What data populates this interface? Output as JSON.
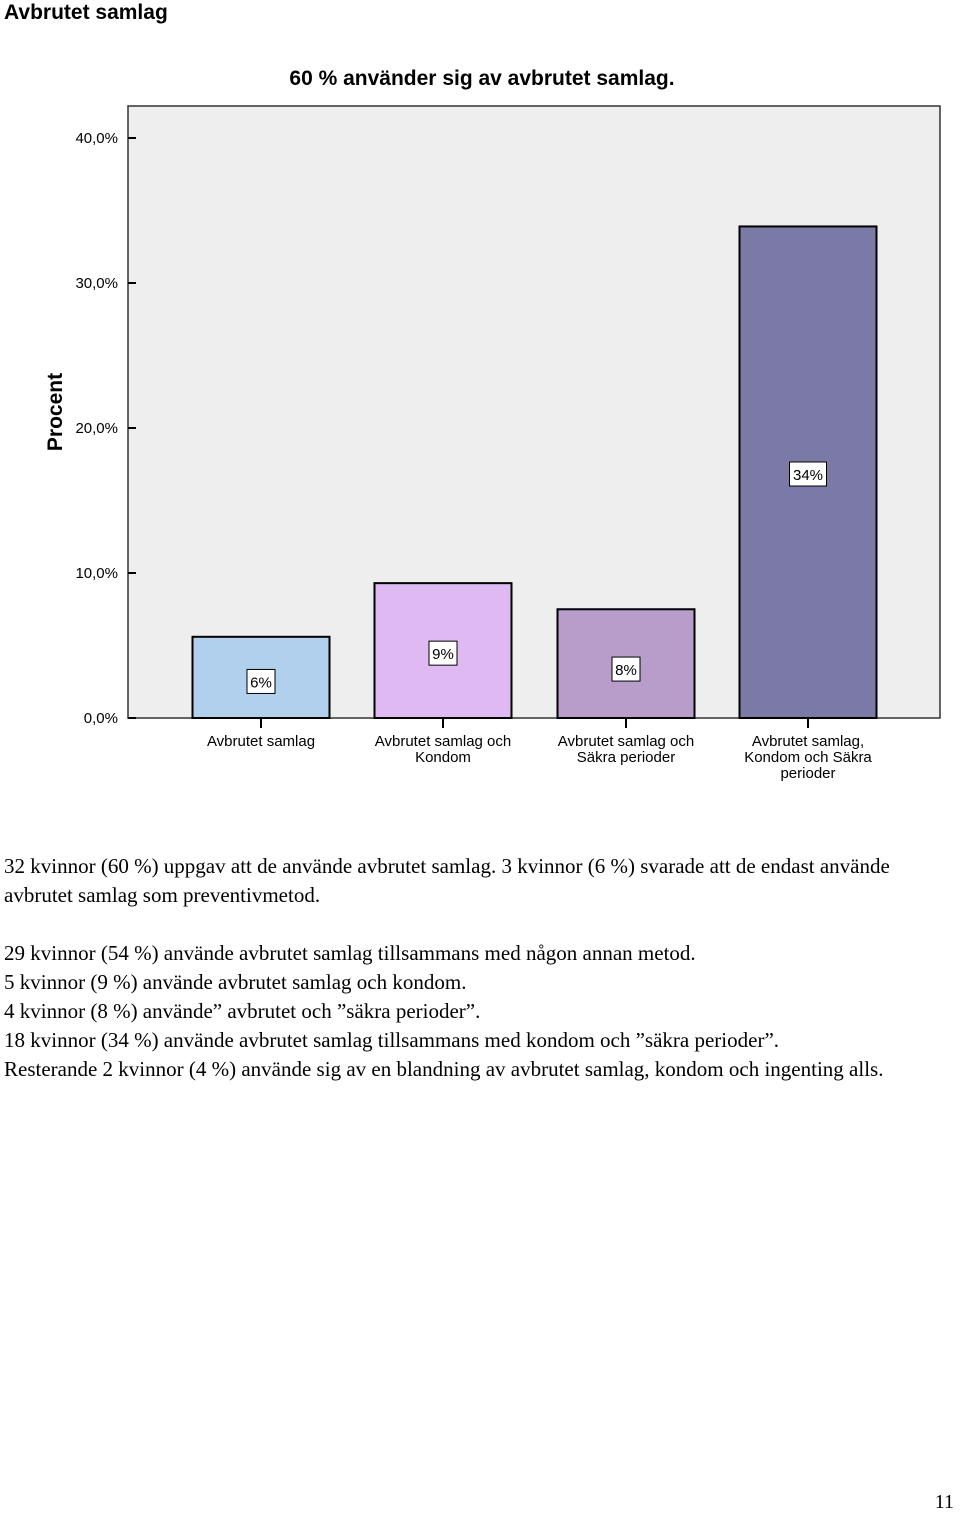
{
  "heading": "Avbrutet samlag",
  "chart_data": {
    "type": "bar",
    "title": "60 % använder sig av avbrutet samlag.",
    "ylabel": "Procent",
    "xlabel": "",
    "ylim": [
      0,
      40
    ],
    "yticks": [
      0,
      10,
      20,
      30,
      40
    ],
    "ytick_labels": [
      "0,0%",
      "10,0%",
      "20,0%",
      "30,0%",
      "40,0%"
    ],
    "categories": [
      [
        "Avbrutet samlag"
      ],
      [
        "Avbrutet samlag och",
        "Kondom"
      ],
      [
        "Avbrutet samlag och",
        "Säkra perioder"
      ],
      [
        "Avbrutet samlag,",
        "Kondom och Säkra",
        "perioder"
      ]
    ],
    "values": [
      5.6,
      9.3,
      7.5,
      33.9
    ],
    "data_labels": [
      "6%",
      "9%",
      "8%",
      "34%"
    ],
    "colors": [
      "#b0d0ee",
      "#dfbaf2",
      "#b89cca",
      "#7b7aa7"
    ],
    "grid": false,
    "legend": "none"
  },
  "text": {
    "p1": "32 kvinnor (60 %) uppgav att de använde avbrutet samlag. 3 kvinnor (6 %) svarade att de endast använde avbrutet samlag som preventivmetod.",
    "p2_l1": "29 kvinnor (54 %) använde avbrutet samlag tillsammans med någon annan metod.",
    "p2_l2": "5 kvinnor (9 %) använde avbrutet samlag och kondom.",
    "p2_l3": "4 kvinnor (8 %) använde” avbrutet och ”säkra perioder”.",
    "p2_l4": "18 kvinnor (34 %) använde avbrutet samlag tillsammans med kondom och ”säkra perioder”.",
    "p2_l5": "Resterande 2 kvinnor (4 %) använde sig av en blandning av avbrutet samlag, kondom och ingenting alls."
  },
  "page_number": "11"
}
